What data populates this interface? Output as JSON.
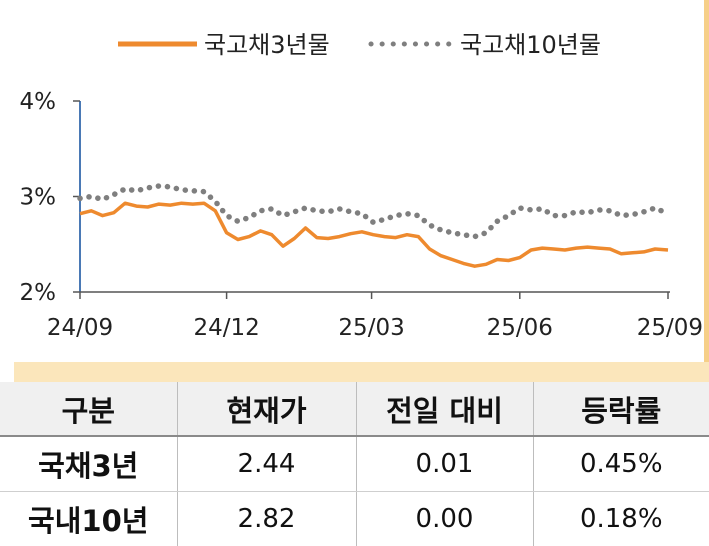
{
  "chart_data": {
    "type": "line",
    "title": "",
    "xlabel": "",
    "ylabel": "",
    "ylim": [
      2,
      4
    ],
    "x_range": [
      "2024-09-01",
      "2025-09-01"
    ],
    "y_ticks": [
      {
        "value": 4,
        "label": "4%"
      },
      {
        "value": 3,
        "label": "3%"
      },
      {
        "value": 2,
        "label": "2%"
      }
    ],
    "x_ticks": [
      {
        "date": "2024-09-01",
        "label": "24/09"
      },
      {
        "date": "2024-12-01",
        "label": "24/12"
      },
      {
        "date": "2025-03-01",
        "label": "25/03"
      },
      {
        "date": "2025-06-01",
        "label": "25/06"
      },
      {
        "date": "2025-09-01",
        "label": "25/09"
      }
    ],
    "legend_position": "top",
    "grid": false,
    "series": [
      {
        "name": "국고채3년물",
        "color": "#ee8a2e",
        "style": "solid",
        "points": [
          [
            "2024-09-01",
            2.82
          ],
          [
            "2024-09-08",
            2.85
          ],
          [
            "2024-09-15",
            2.8
          ],
          [
            "2024-09-22",
            2.83
          ],
          [
            "2024-09-29",
            2.93
          ],
          [
            "2024-10-06",
            2.9
          ],
          [
            "2024-10-13",
            2.89
          ],
          [
            "2024-10-20",
            2.92
          ],
          [
            "2024-10-27",
            2.91
          ],
          [
            "2024-11-03",
            2.93
          ],
          [
            "2024-11-10",
            2.92
          ],
          [
            "2024-11-17",
            2.93
          ],
          [
            "2024-11-24",
            2.85
          ],
          [
            "2024-12-01",
            2.62
          ],
          [
            "2024-12-08",
            2.55
          ],
          [
            "2024-12-15",
            2.58
          ],
          [
            "2024-12-22",
            2.64
          ],
          [
            "2024-12-29",
            2.6
          ],
          [
            "2025-01-05",
            2.48
          ],
          [
            "2025-01-12",
            2.56
          ],
          [
            "2025-01-19",
            2.67
          ],
          [
            "2025-01-26",
            2.57
          ],
          [
            "2025-02-02",
            2.56
          ],
          [
            "2025-02-09",
            2.58
          ],
          [
            "2025-02-16",
            2.61
          ],
          [
            "2025-02-23",
            2.63
          ],
          [
            "2025-03-02",
            2.6
          ],
          [
            "2025-03-09",
            2.58
          ],
          [
            "2025-03-16",
            2.57
          ],
          [
            "2025-03-23",
            2.6
          ],
          [
            "2025-03-30",
            2.58
          ],
          [
            "2025-04-06",
            2.45
          ],
          [
            "2025-04-13",
            2.38
          ],
          [
            "2025-04-20",
            2.34
          ],
          [
            "2025-04-27",
            2.3
          ],
          [
            "2025-05-04",
            2.27
          ],
          [
            "2025-05-11",
            2.29
          ],
          [
            "2025-05-18",
            2.34
          ],
          [
            "2025-05-25",
            2.33
          ],
          [
            "2025-06-01",
            2.36
          ],
          [
            "2025-06-08",
            2.44
          ],
          [
            "2025-06-15",
            2.46
          ],
          [
            "2025-06-22",
            2.45
          ],
          [
            "2025-06-29",
            2.44
          ],
          [
            "2025-07-06",
            2.46
          ],
          [
            "2025-07-13",
            2.47
          ],
          [
            "2025-07-20",
            2.46
          ],
          [
            "2025-07-27",
            2.45
          ],
          [
            "2025-08-03",
            2.4
          ],
          [
            "2025-08-10",
            2.41
          ],
          [
            "2025-08-17",
            2.42
          ],
          [
            "2025-08-24",
            2.45
          ],
          [
            "2025-09-01",
            2.44
          ]
        ]
      },
      {
        "name": "국고채10년물",
        "color": "#7f7f7f",
        "style": "dotted",
        "points": [
          [
            "2024-09-01",
            2.98
          ],
          [
            "2024-09-08",
            3.0
          ],
          [
            "2024-09-15",
            2.97
          ],
          [
            "2024-09-22",
            3.02
          ],
          [
            "2024-09-29",
            3.08
          ],
          [
            "2024-10-06",
            3.06
          ],
          [
            "2024-10-13",
            3.09
          ],
          [
            "2024-10-20",
            3.11
          ],
          [
            "2024-10-27",
            3.1
          ],
          [
            "2024-11-03",
            3.07
          ],
          [
            "2024-11-10",
            3.06
          ],
          [
            "2024-11-17",
            3.05
          ],
          [
            "2024-11-24",
            2.95
          ],
          [
            "2024-12-01",
            2.8
          ],
          [
            "2024-12-08",
            2.74
          ],
          [
            "2024-12-15",
            2.78
          ],
          [
            "2024-12-22",
            2.85
          ],
          [
            "2024-12-29",
            2.87
          ],
          [
            "2025-01-05",
            2.8
          ],
          [
            "2025-01-12",
            2.84
          ],
          [
            "2025-01-19",
            2.88
          ],
          [
            "2025-01-26",
            2.85
          ],
          [
            "2025-02-02",
            2.84
          ],
          [
            "2025-02-09",
            2.87
          ],
          [
            "2025-02-16",
            2.84
          ],
          [
            "2025-02-23",
            2.82
          ],
          [
            "2025-03-02",
            2.73
          ],
          [
            "2025-03-09",
            2.76
          ],
          [
            "2025-03-16",
            2.8
          ],
          [
            "2025-03-23",
            2.82
          ],
          [
            "2025-03-30",
            2.8
          ],
          [
            "2025-04-06",
            2.7
          ],
          [
            "2025-04-13",
            2.65
          ],
          [
            "2025-04-20",
            2.62
          ],
          [
            "2025-04-27",
            2.6
          ],
          [
            "2025-05-04",
            2.58
          ],
          [
            "2025-05-11",
            2.62
          ],
          [
            "2025-05-18",
            2.74
          ],
          [
            "2025-05-25",
            2.8
          ],
          [
            "2025-06-01",
            2.88
          ],
          [
            "2025-06-08",
            2.86
          ],
          [
            "2025-06-15",
            2.87
          ],
          [
            "2025-06-22",
            2.8
          ],
          [
            "2025-06-29",
            2.8
          ],
          [
            "2025-07-06",
            2.84
          ],
          [
            "2025-07-13",
            2.83
          ],
          [
            "2025-07-20",
            2.86
          ],
          [
            "2025-07-27",
            2.85
          ],
          [
            "2025-08-03",
            2.8
          ],
          [
            "2025-08-10",
            2.81
          ],
          [
            "2025-08-17",
            2.84
          ],
          [
            "2025-08-24",
            2.88
          ],
          [
            "2025-09-01",
            2.82
          ]
        ]
      }
    ]
  },
  "table": {
    "headers": [
      "구분",
      "현재가",
      "전일 대비",
      "등락률"
    ],
    "rows": [
      {
        "name": "국채3년",
        "price": "2.44",
        "change": "0.01",
        "rate": "0.45%"
      },
      {
        "name": "국내10년",
        "price": "2.82",
        "change": "0.00",
        "rate": "0.18%"
      }
    ]
  }
}
